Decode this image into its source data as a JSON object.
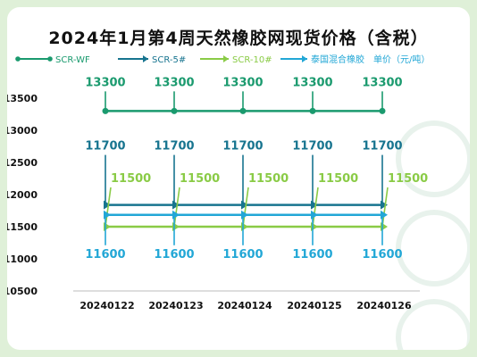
{
  "title": "2024年1月第4周天然橡胶网现货价格（含税）",
  "colors": {
    "scr_wf": "#1a9a6e",
    "scr5": "#17748f",
    "scr10": "#8acb46",
    "mixed": "#22a7d6"
  },
  "chart_data": {
    "type": "line",
    "title": "2024年1月第4周天然橡胶网现货价格（含税）",
    "categories": [
      "20240122",
      "20240123",
      "20240124",
      "20240125",
      "20240126"
    ],
    "unit_label": "单价（元/吨）",
    "ylim": [
      10500,
      13500
    ],
    "yticks": [
      13500,
      13000,
      12500,
      12000,
      11500,
      11000,
      10500
    ],
    "grid": false,
    "legend_position": "top",
    "series": [
      {
        "name": "SCR-WF",
        "values": [
          13300,
          13300,
          13300,
          13300,
          13300
        ]
      },
      {
        "name": "SCR-5#",
        "values": [
          11700,
          11700,
          11700,
          11700,
          11700
        ]
      },
      {
        "name": "SCR-10#",
        "values": [
          11500,
          11500,
          11500,
          11500,
          11500
        ]
      },
      {
        "name": "泰国混合橡胶",
        "values": [
          11600,
          11600,
          11600,
          11600,
          11600
        ]
      }
    ]
  }
}
